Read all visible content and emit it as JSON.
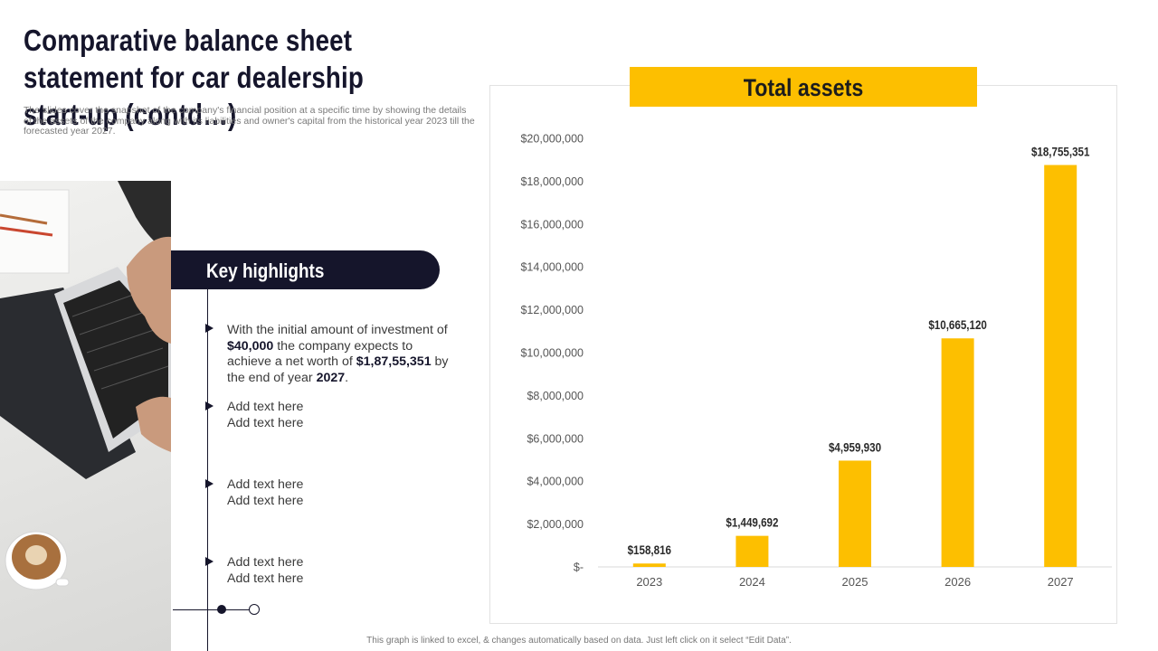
{
  "slide": {
    "title": "Comparative balance sheet statement for car dealership start-up (contd…)",
    "subtitle": "The slides cover the snapshot of the company's financial position at a specific time by showing the details of the assets of the company along with its liabilities and owner's capital from the historical year 2023 till the forecasted year 2027.",
    "footer": "This graph is linked to excel, & changes automatically based on data. Just left click on it select “Edit Data”."
  },
  "highlights": {
    "heading": "Key highlights",
    "main_point": {
      "t1": "With the initial amount of investment of ",
      "investment": "$40,000",
      "t2": " the company expects to achieve a net worth of ",
      "net_worth": "$1,87,55,351",
      "t3": " by the end of year ",
      "year": "2027",
      "t4": "."
    },
    "placeholders": [
      [
        "Add text here",
        "Add text here"
      ],
      [
        "Add text here",
        "Add text here"
      ],
      [
        "Add text here",
        "Add text here"
      ]
    ]
  },
  "colors": {
    "accent": "#fdbf00",
    "navy": "#15152b"
  },
  "chart_data": {
    "type": "bar",
    "title": "Total assets",
    "categories": [
      "2023",
      "2024",
      "2025",
      "2026",
      "2027"
    ],
    "values": [
      158816,
      1449692,
      4959930,
      10665120,
      18755351
    ],
    "data_labels": [
      "$158,816",
      "$1,449,692",
      "$4,959,930",
      "$10,665,120",
      "$18,755,351"
    ],
    "ylim": [
      0,
      20000000
    ],
    "yticks": [
      0,
      2000000,
      4000000,
      6000000,
      8000000,
      10000000,
      12000000,
      14000000,
      16000000,
      18000000,
      20000000
    ],
    "ytick_labels": [
      "$-",
      "$2,000,000",
      "$4,000,000",
      "$6,000,000",
      "$8,000,000",
      "$10,000,000",
      "$12,000,000",
      "$14,000,000",
      "$16,000,000",
      "$18,000,000",
      "$20,000,000"
    ],
    "grid": false,
    "legend": "none",
    "bar_color": "#fdbf00"
  }
}
